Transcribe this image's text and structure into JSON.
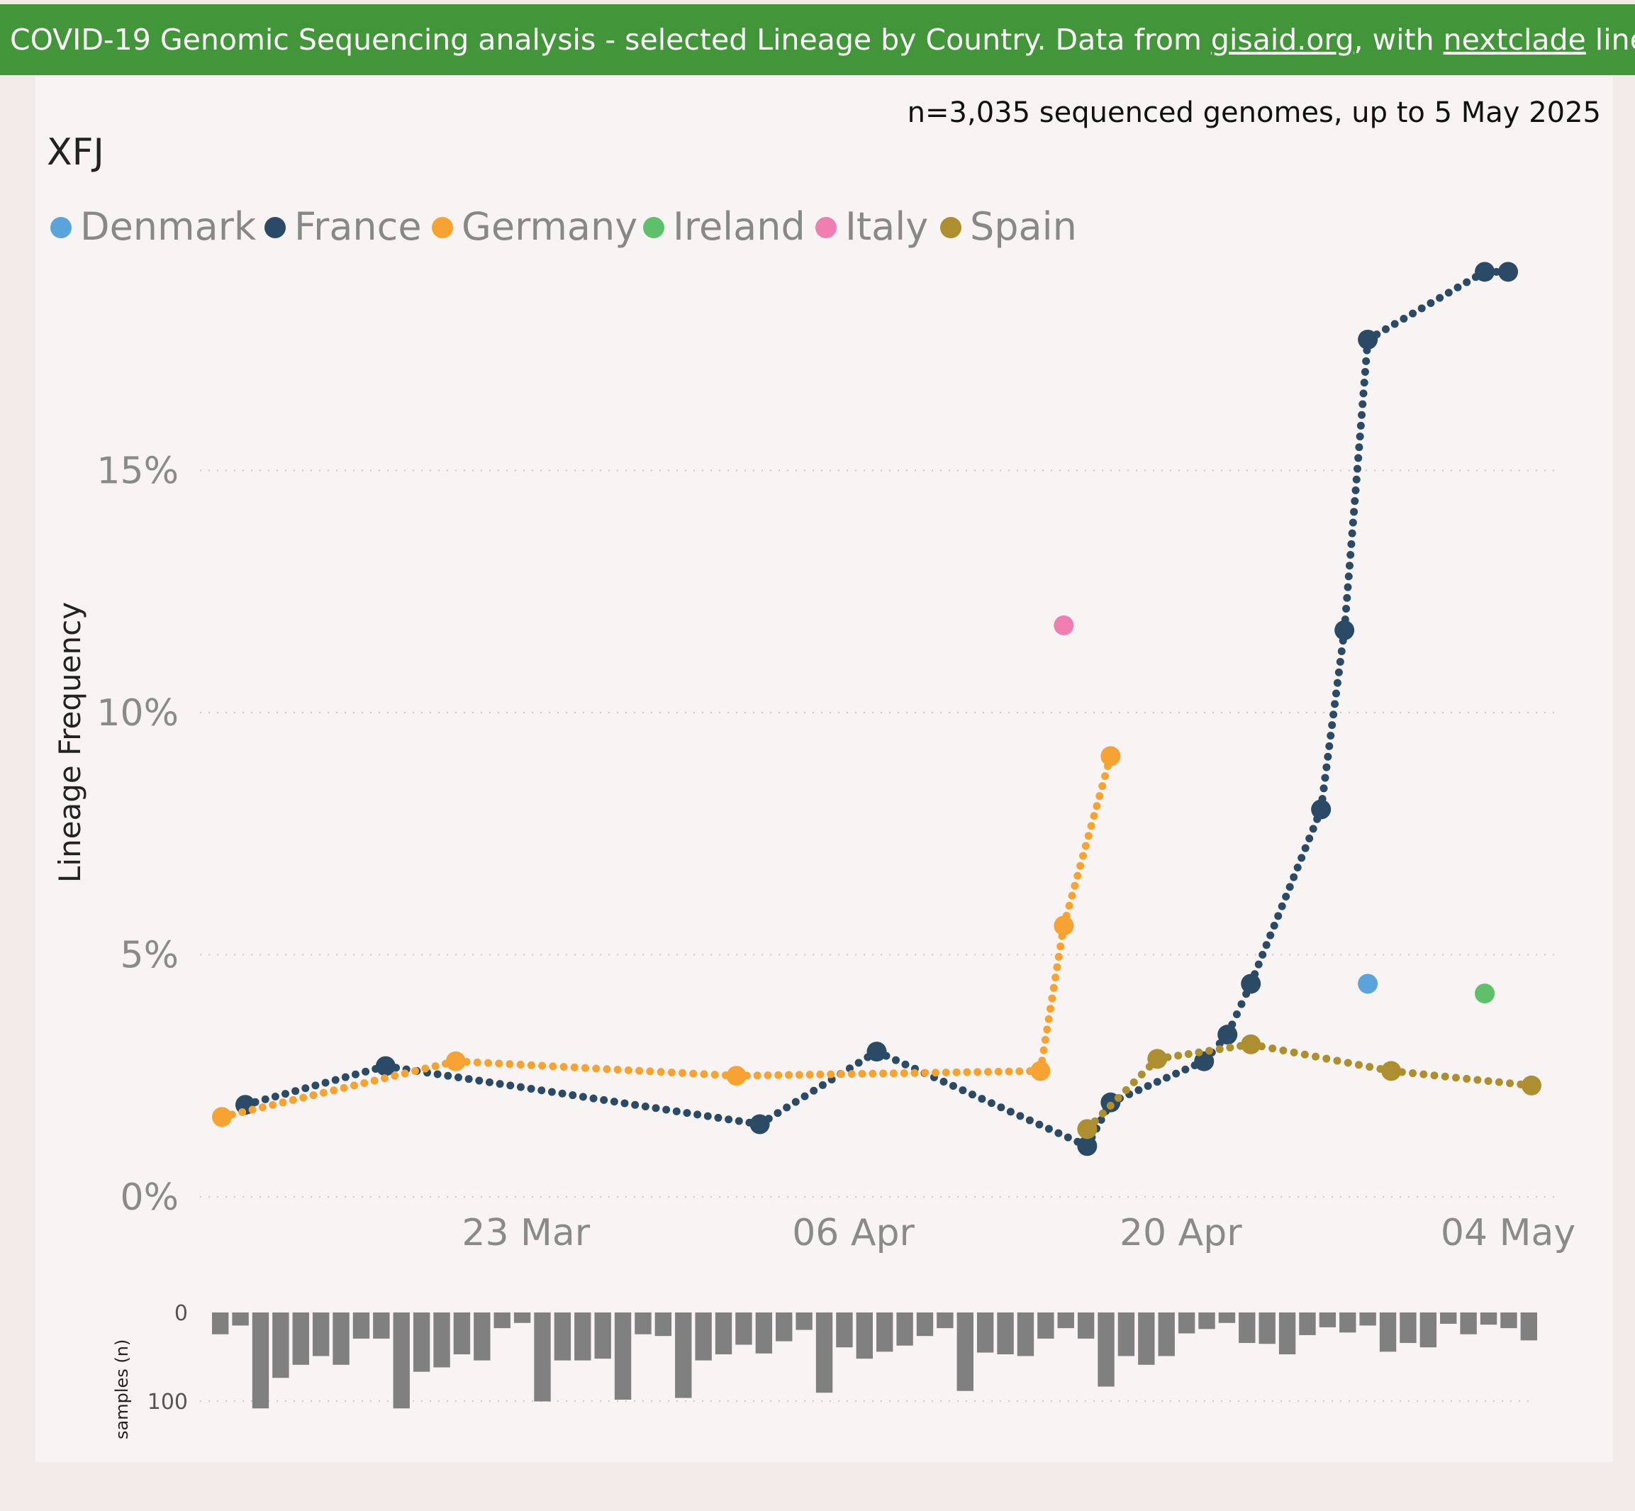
{
  "banner": {
    "prefix": "COVID-19 Genomic Sequencing analysis - selected Lineage by Country. Data from ",
    "link1": "gisaid.org",
    "middle": ", with ",
    "link2": "nextclade",
    "suffix": " lineages S"
  },
  "chart_data": {
    "type": "line",
    "title": "XFJ",
    "subtitle": "n=3,035 sequenced genomes, up to 5 May 2025",
    "ylabel": "Lineage Frequency",
    "ylim": [
      0,
      19.5
    ],
    "yticks": [
      0,
      5,
      10,
      15
    ],
    "ytick_labels": [
      "0%",
      "5%",
      "10%",
      "15%"
    ],
    "xlim": [
      "2025-03-10",
      "2025-05-05"
    ],
    "xticks": [
      "2025-03-23",
      "2025-04-06",
      "2025-04-20",
      "2025-05-04"
    ],
    "xtick_labels": [
      "23 Mar",
      "06 Apr",
      "20 Apr",
      "04 May"
    ],
    "legend": [
      "Denmark",
      "France",
      "Germany",
      "Ireland",
      "Italy",
      "Spain"
    ],
    "legend_position": "top-left",
    "grid": true,
    "series": [
      {
        "name": "Denmark",
        "color": "#5ba3db",
        "points": [
          [
            "2025-04-28",
            4.4
          ]
        ]
      },
      {
        "name": "France",
        "color": "#2a4a66",
        "points": [
          [
            "2025-03-11",
            1.9
          ],
          [
            "2025-03-17",
            2.7
          ],
          [
            "2025-04-02",
            1.5
          ],
          [
            "2025-04-07",
            3.0
          ],
          [
            "2025-04-16",
            1.05
          ],
          [
            "2025-04-17",
            1.95
          ],
          [
            "2025-04-21",
            2.8
          ],
          [
            "2025-04-22",
            3.35
          ],
          [
            "2025-04-23",
            4.4
          ],
          [
            "2025-04-26",
            8.0
          ],
          [
            "2025-04-27",
            11.7
          ],
          [
            "2025-04-28",
            17.7
          ],
          [
            "2025-05-03",
            19.1
          ],
          [
            "2025-05-04",
            19.1
          ]
        ]
      },
      {
        "name": "Germany",
        "color": "#f7a334",
        "points": [
          [
            "2025-03-10",
            1.65
          ],
          [
            "2025-03-20",
            2.8
          ],
          [
            "2025-04-01",
            2.5
          ],
          [
            "2025-04-14",
            2.6
          ],
          [
            "2025-04-15",
            5.6
          ],
          [
            "2025-04-17",
            9.1
          ]
        ]
      },
      {
        "name": "Ireland",
        "color": "#5ec06a",
        "points": [
          [
            "2025-05-03",
            4.2
          ]
        ]
      },
      {
        "name": "Italy",
        "color": "#ef7eb2",
        "points": [
          [
            "2025-04-15",
            11.8
          ]
        ]
      },
      {
        "name": "Spain",
        "color": "#ad8f2f",
        "points": [
          [
            "2025-04-16",
            1.4
          ],
          [
            "2025-04-19",
            2.85
          ],
          [
            "2025-04-23",
            3.15
          ],
          [
            "2025-04-29",
            2.6
          ],
          [
            "2025-05-05",
            2.3
          ]
        ]
      }
    ],
    "samples": {
      "ylabel": "samples (n)",
      "yticks": [
        0,
        100
      ],
      "ytick_labels": [
        "0",
        "100"
      ],
      "color": "#808080",
      "values": [
        25,
        15,
        110,
        75,
        60,
        50,
        60,
        30,
        30,
        110,
        68,
        63,
        48,
        55,
        18,
        12,
        102,
        55,
        55,
        53,
        100,
        25,
        27,
        98,
        55,
        48,
        37,
        47,
        33,
        20,
        92,
        40,
        53,
        45,
        38,
        27,
        18,
        90,
        46,
        48,
        50,
        30,
        18,
        30,
        85,
        50,
        60,
        50,
        24,
        19,
        12,
        35,
        36,
        48,
        26,
        17,
        23,
        15,
        45,
        35,
        40,
        13,
        25,
        14,
        18,
        32
      ]
    }
  }
}
